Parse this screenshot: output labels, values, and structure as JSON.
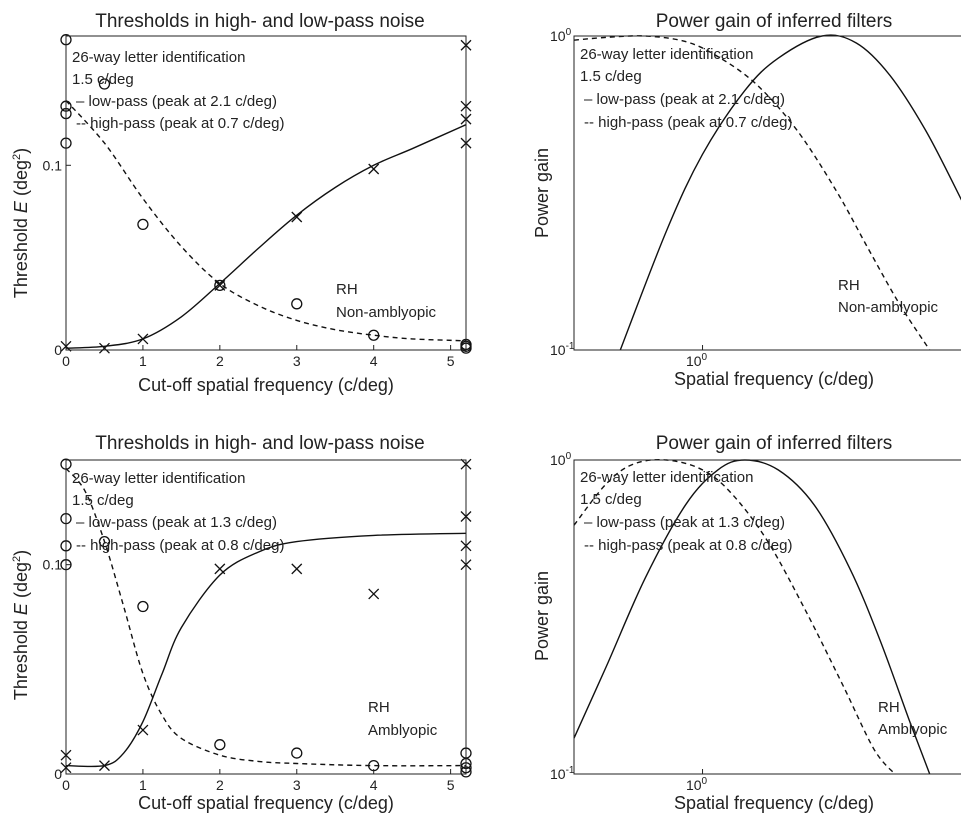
{
  "chart_data": [
    {
      "type": "scatter",
      "title": "Thresholds in high- and low-pass noise",
      "xlabel": "Cut-off spatial frequency (c/deg)",
      "ylabel_pre": "Threshold ",
      "ylabel_var": "E",
      "ylabel_post": " (deg",
      "ylabel_sup": "2",
      "ylabel_close": ")",
      "xlim": [
        0,
        5.2
      ],
      "ylim": [
        0,
        0.17
      ],
      "xticks": [
        "0",
        "1",
        "2",
        "3",
        "4",
        "5"
      ],
      "yticks": [
        "0",
        "0.1"
      ],
      "annotations": [
        "26-way letter identification",
        "1.5 c/deg",
        "– low-pass (peak at 2.1 c/deg)",
        "-- high-pass (peak at 0.7 c/deg)"
      ],
      "observer": [
        "RH",
        "Non-amblyopic"
      ],
      "series": [
        {
          "marker": "o",
          "x": [
            0,
            0,
            0,
            0,
            0.5,
            1,
            2,
            3,
            4,
            5.2,
            5.2,
            5.2
          ],
          "y": [
            0.168,
            0.132,
            0.128,
            0.112,
            0.144,
            0.068,
            0.035,
            0.025,
            0.008,
            0.001,
            0.002,
            0.003
          ]
        },
        {
          "marker": "x",
          "x": [
            0,
            0.5,
            1,
            2,
            3,
            4,
            5.2,
            5.2,
            5.2,
            5.2
          ],
          "y": [
            0.002,
            0.001,
            0.006,
            0.035,
            0.072,
            0.098,
            0.165,
            0.132,
            0.125,
            0.112
          ]
        },
        {
          "line": "solid",
          "x": [
            0,
            0.5,
            1,
            1.5,
            2,
            2.5,
            3,
            3.5,
            4,
            4.5,
            5.2
          ],
          "y": [
            0.001,
            0.002,
            0.006,
            0.018,
            0.036,
            0.055,
            0.073,
            0.088,
            0.1,
            0.109,
            0.122
          ]
        },
        {
          "line": "dashed",
          "x": [
            0,
            0.5,
            1,
            1.5,
            2,
            2.5,
            3,
            3.5,
            4,
            4.5,
            5.2
          ],
          "y": [
            0.135,
            0.112,
            0.082,
            0.056,
            0.036,
            0.024,
            0.016,
            0.011,
            0.008,
            0.006,
            0.005
          ]
        }
      ]
    },
    {
      "type": "line",
      "title": "Power gain of inferred filters",
      "xlabel": "Spatial frequency (c/deg)",
      "ylabel": "Power gain",
      "xscale": "log",
      "yscale": "log",
      "xlim": [
        0.45,
        5.4
      ],
      "ylim": [
        0.1,
        1
      ],
      "xticks": [
        {
          "base": "10",
          "exp": "0"
        }
      ],
      "yticks": [
        {
          "base": "10",
          "exp": "0"
        },
        {
          "base": "10",
          "exp": "-1"
        }
      ],
      "annotations": [
        "26-way letter identification",
        "1.5 c/deg",
        "– low-pass (peak at 2.1 c/deg)",
        "-- high-pass (peak at 0.7 c/deg)"
      ],
      "observer": [
        "RH",
        "Non-amblyopic"
      ],
      "series": [
        {
          "line": "solid",
          "x": [
            0.6,
            0.8,
            1,
            1.3,
            1.6,
            2.1,
            2.6,
            3.2,
            4,
            5,
            5.4
          ],
          "y": [
            0.1,
            0.24,
            0.42,
            0.67,
            0.85,
            1.0,
            0.95,
            0.75,
            0.5,
            0.3,
            0.25
          ]
        },
        {
          "line": "dashed",
          "x": [
            0.45,
            0.55,
            0.7,
            0.9,
            1.1,
            1.4,
            1.8,
            2.3,
            2.8,
            3.4,
            4.1
          ],
          "y": [
            0.97,
            0.99,
            1.0,
            0.96,
            0.86,
            0.7,
            0.5,
            0.32,
            0.21,
            0.14,
            0.1
          ]
        }
      ]
    },
    {
      "type": "scatter",
      "title": "Thresholds in high- and low-pass noise",
      "xlabel": "Cut-off spatial frequency (c/deg)",
      "ylabel_pre": "Threshold ",
      "ylabel_var": "E",
      "ylabel_post": " (deg",
      "ylabel_sup": "2",
      "ylabel_close": ")",
      "xlim": [
        0,
        5.2
      ],
      "ylim": [
        0,
        0.15
      ],
      "xticks": [
        "0",
        "1",
        "2",
        "3",
        "4",
        "5"
      ],
      "yticks": [
        "0",
        "0.1"
      ],
      "annotations": [
        "26-way letter identification",
        "1.5 c/deg",
        "– low-pass (peak at 1.3 c/deg)",
        "-- high-pass (peak at 0.8 c/deg)"
      ],
      "observer": [
        "RH",
        "Amblyopic"
      ],
      "series": [
        {
          "marker": "o",
          "x": [
            0,
            0,
            0,
            0,
            0.5,
            1,
            2,
            3,
            4,
            5.2,
            5.2,
            5.2,
            5.2
          ],
          "y": [
            0.148,
            0.122,
            0.109,
            0.1,
            0.111,
            0.08,
            0.014,
            0.01,
            0.004,
            0.01,
            0.005,
            0.003,
            0.001
          ]
        },
        {
          "marker": "x",
          "x": [
            0,
            0,
            0.5,
            1,
            2,
            3,
            4,
            5.2,
            5.2,
            5.2,
            5.2
          ],
          "y": [
            0.009,
            0.003,
            0.004,
            0.021,
            0.098,
            0.098,
            0.086,
            0.148,
            0.123,
            0.109,
            0.1
          ]
        },
        {
          "line": "solid",
          "x": [
            0,
            0.5,
            0.75,
            1,
            1.25,
            1.5,
            2,
            2.5,
            3,
            4,
            5.2
          ],
          "y": [
            0.004,
            0.004,
            0.01,
            0.025,
            0.048,
            0.07,
            0.095,
            0.106,
            0.111,
            0.114,
            0.115
          ]
        },
        {
          "line": "dashed",
          "x": [
            0,
            0.25,
            0.5,
            0.75,
            1,
            1.25,
            1.5,
            2,
            2.5,
            3,
            4,
            5.2
          ],
          "y": [
            0.146,
            0.135,
            0.111,
            0.08,
            0.048,
            0.028,
            0.017,
            0.009,
            0.006,
            0.005,
            0.004,
            0.004
          ]
        }
      ]
    },
    {
      "type": "line",
      "title": "Power gain of inferred filters",
      "xlabel": "Spatial frequency (c/deg)",
      "ylabel": "Power gain",
      "xscale": "log",
      "yscale": "log",
      "xlim": [
        0.45,
        5.4
      ],
      "ylim": [
        0.1,
        1
      ],
      "xticks": [
        {
          "base": "10",
          "exp": "0"
        }
      ],
      "yticks": [
        {
          "base": "10",
          "exp": "0"
        },
        {
          "base": "10",
          "exp": "-1"
        }
      ],
      "annotations": [
        "26-way letter identification",
        "1.5 c/deg",
        "– low-pass (peak at 1.3 c/deg)",
        "-- high-pass (peak at 0.8 c/deg)"
      ],
      "observer": [
        "RH",
        "Amblyopic"
      ],
      "series": [
        {
          "line": "solid",
          "x": [
            0.45,
            0.55,
            0.7,
            0.9,
            1.1,
            1.3,
            1.6,
            2,
            2.5,
            3,
            3.6,
            4.1
          ],
          "y": [
            0.13,
            0.22,
            0.42,
            0.72,
            0.93,
            1.0,
            0.93,
            0.72,
            0.45,
            0.27,
            0.15,
            0.1
          ]
        },
        {
          "line": "dashed",
          "x": [
            0.45,
            0.55,
            0.65,
            0.8,
            1,
            1.2,
            1.5,
            1.9,
            2.4,
            2.9,
            3.3
          ],
          "y": [
            0.62,
            0.84,
            0.97,
            1.0,
            0.93,
            0.78,
            0.55,
            0.33,
            0.19,
            0.12,
            0.1
          ]
        }
      ]
    }
  ]
}
